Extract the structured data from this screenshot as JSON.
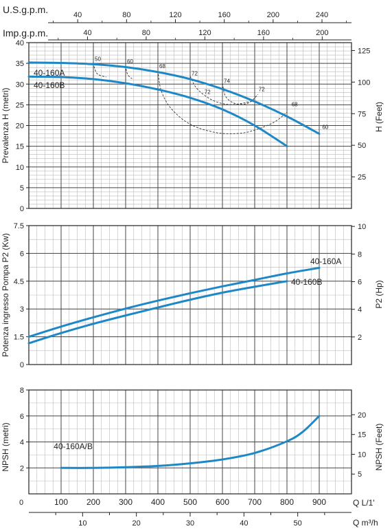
{
  "top_axes": {
    "usgpm": {
      "label": "U.S.g.p.m.",
      "ticks": [
        {
          "v": 40,
          "l": "40"
        },
        {
          "v": 80,
          "l": "80"
        },
        {
          "v": 120,
          "l": "120"
        },
        {
          "v": 160,
          "l": "160"
        },
        {
          "v": 200,
          "l": "200"
        },
        {
          "v": 240,
          "l": "240"
        }
      ]
    },
    "impgpm": {
      "label": "Imp.g.p.m.",
      "ticks": [
        {
          "v": 40,
          "l": "40"
        },
        {
          "v": 80,
          "l": "80"
        },
        {
          "v": 120,
          "l": "120"
        },
        {
          "v": 160,
          "l": "160"
        },
        {
          "v": 200,
          "l": "200"
        }
      ]
    }
  },
  "bottom_axes": {
    "lmin": {
      "label": "Q  L/1'",
      "zero_label": "0",
      "ticks": [
        {
          "v": 100,
          "l": "100"
        },
        {
          "v": 200,
          "l": "200"
        },
        {
          "v": 300,
          "l": "300"
        },
        {
          "v": 400,
          "l": "400"
        },
        {
          "v": 500,
          "l": "500"
        },
        {
          "v": 600,
          "l": "600"
        },
        {
          "v": 700,
          "l": "700"
        },
        {
          "v": 800,
          "l": "800"
        },
        {
          "v": 900,
          "l": "900"
        }
      ]
    },
    "m3h": {
      "label": "Q  m³/h",
      "ticks": [
        {
          "v": 10,
          "l": "10"
        },
        {
          "v": 20,
          "l": "20"
        },
        {
          "v": 30,
          "l": "30"
        },
        {
          "v": 40,
          "l": "40"
        },
        {
          "v": 50,
          "l": "50"
        }
      ]
    }
  },
  "colors": {
    "curve": "#1e88c7",
    "grid": "#444444",
    "minor_grid": "#b8b8b8",
    "efficiency": "#333333"
  },
  "chart_data": [
    {
      "type": "line",
      "id": "head",
      "ylabel": "Prevalenza H (metri)",
      "y2label": "H (Feet)",
      "xlim": [
        0,
        1000
      ],
      "ylim": [
        0,
        40
      ],
      "yticks": [
        0,
        5,
        10,
        15,
        20,
        25,
        30,
        35,
        40
      ],
      "y2ticks": [
        {
          "v": 25,
          "l": "25"
        },
        {
          "v": 50,
          "l": "50"
        },
        {
          "v": 75,
          "l": "75"
        },
        {
          "v": 100,
          "l": "100"
        },
        {
          "v": 125,
          "l": "125"
        }
      ],
      "y2_factor": 3.2808,
      "series": [
        {
          "name": "40-160A",
          "x": [
            0,
            100,
            200,
            300,
            400,
            500,
            600,
            700,
            800,
            900
          ],
          "y": [
            35.2,
            35.1,
            34.8,
            34.1,
            32.9,
            31.2,
            28.8,
            25.8,
            22.2,
            18.0
          ]
        },
        {
          "name": "40-160B",
          "x": [
            0,
            100,
            200,
            300,
            400,
            500,
            600,
            700,
            800
          ],
          "y": [
            31.8,
            31.7,
            31.2,
            30.2,
            28.7,
            26.7,
            23.9,
            20.0,
            15.0
          ]
        }
      ],
      "efficiency_labels": [
        {
          "label": "50",
          "x": 200,
          "y": 35.3
        },
        {
          "label": "60",
          "x": 300,
          "y": 34.7
        },
        {
          "label": "68",
          "x": 400,
          "y": 33.5
        },
        {
          "label": "72",
          "x": 500,
          "y": 31.8
        },
        {
          "label": "74",
          "x": 600,
          "y": 30.0
        },
        {
          "label": "72",
          "x": 708,
          "y": 28.0
        },
        {
          "label": "72",
          "x": 540,
          "y": 27.3
        },
        {
          "label": "68",
          "x": 810,
          "y": 24.3
        },
        {
          "label": "60",
          "x": 905,
          "y": 18.8
        }
      ],
      "efficiency_curves": [
        {
          "x": [
            200,
            205,
            215,
            240
          ],
          "y": [
            35.1,
            33.5,
            32.3,
            31.7
          ]
        },
        {
          "x": [
            300,
            303,
            309,
            320
          ],
          "y": [
            34.5,
            33.0,
            32.0,
            31.3
          ]
        },
        {
          "x": [
            400,
            410,
            440,
            500,
            580,
            650,
            700,
            760,
            800
          ],
          "y": [
            33.2,
            28.5,
            24.2,
            20.3,
            18.3,
            18.1,
            18.9,
            20.8,
            23.2
          ]
        },
        {
          "x": [
            500,
            520,
            560,
            600,
            640,
            700
          ],
          "y": [
            31.9,
            29.0,
            26.5,
            25.3,
            25.1,
            26.0
          ]
        },
        {
          "x": [
            600,
            610,
            640,
            680,
            710
          ],
          "y": [
            30.2,
            27.0,
            25.3,
            25.4,
            27.5
          ]
        }
      ]
    },
    {
      "type": "line",
      "id": "power",
      "ylabel": "Potenza ingresso Pompa P2 (Kw)",
      "y2label": "P2 (Hp)",
      "xlim": [
        0,
        1000
      ],
      "ylim": [
        0,
        7.5
      ],
      "yticks": [
        {
          "v": 0,
          "l": "0"
        },
        {
          "v": 1.5,
          "l": "1.5"
        },
        {
          "v": 3,
          "l": "3"
        },
        {
          "v": 4.5,
          "l": "4.5"
        },
        {
          "v": 6,
          "l": "6"
        },
        {
          "v": 7.5,
          "l": "7.5"
        }
      ],
      "y2ticks": [
        {
          "v": 2,
          "l": "2"
        },
        {
          "v": 4,
          "l": "4"
        },
        {
          "v": 6,
          "l": "6"
        },
        {
          "v": 8,
          "l": "8"
        },
        {
          "v": 10,
          "l": "10"
        }
      ],
      "y2_factor": 1.341,
      "series": [
        {
          "name": "40-160A",
          "x": [
            0,
            100,
            200,
            300,
            400,
            500,
            600,
            700,
            800,
            900
          ],
          "y": [
            1.5,
            2.05,
            2.55,
            3.02,
            3.45,
            3.85,
            4.22,
            4.57,
            4.92,
            5.22
          ]
        },
        {
          "name": "40-160B",
          "x": [
            0,
            100,
            200,
            300,
            400,
            500,
            600,
            700,
            800
          ],
          "y": [
            1.15,
            1.7,
            2.2,
            2.65,
            3.08,
            3.5,
            3.88,
            4.2,
            4.5
          ]
        }
      ]
    },
    {
      "type": "line",
      "id": "npsh",
      "ylabel": "NPSH (metri)",
      "y2label": "NPSH (Feet)",
      "xlim": [
        0,
        1000
      ],
      "ylim": [
        0,
        8
      ],
      "yticks": [
        {
          "v": 2,
          "l": "2"
        },
        {
          "v": 4,
          "l": "4"
        },
        {
          "v": 6,
          "l": "6"
        },
        {
          "v": 8,
          "l": "8"
        }
      ],
      "y2ticks": [
        {
          "v": 5,
          "l": "5"
        },
        {
          "v": 10,
          "l": "10"
        },
        {
          "v": 15,
          "l": "15"
        },
        {
          "v": 20,
          "l": "20"
        }
      ],
      "y2_factor": 3.2808,
      "series": [
        {
          "name": "40-160A/B",
          "x": [
            100,
            200,
            300,
            400,
            500,
            600,
            700,
            800,
            850,
            900
          ],
          "y": [
            2.0,
            2.0,
            2.05,
            2.15,
            2.35,
            2.65,
            3.15,
            4.05,
            4.8,
            6.0
          ]
        }
      ],
      "series_label_pos": {
        "x": 290,
        "y": 3.45
      }
    }
  ]
}
